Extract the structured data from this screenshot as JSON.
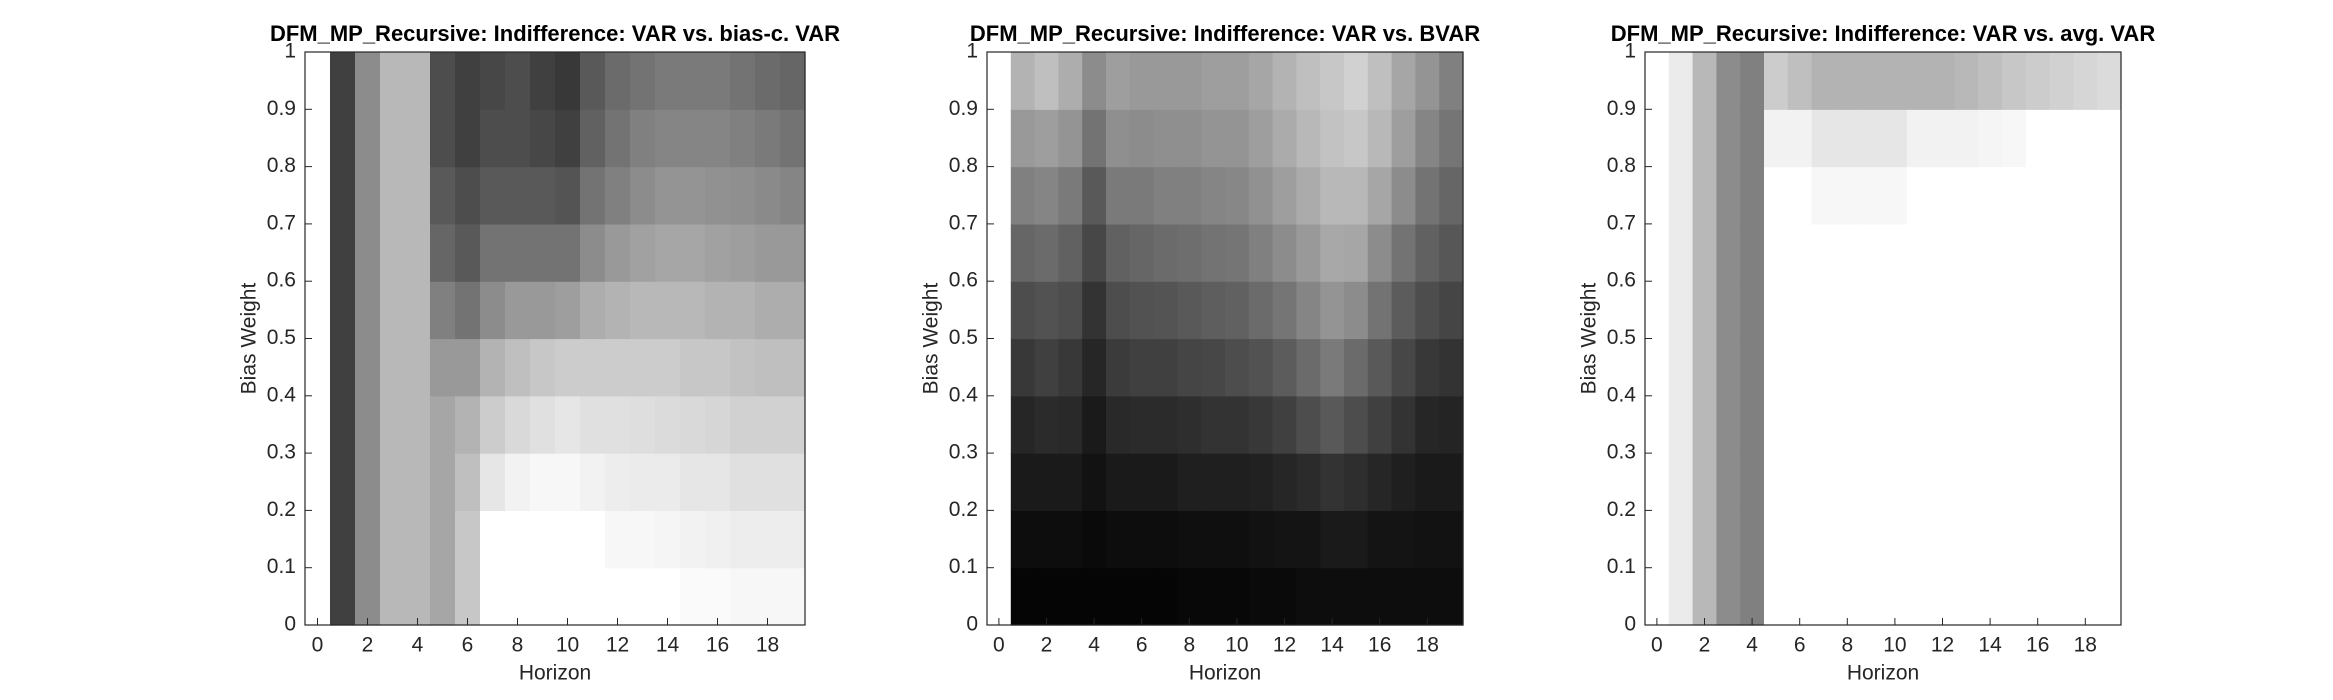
{
  "chart_data": [
    {
      "type": "heatmap",
      "title": "DFM_MP_Recursive: Indifference: VAR vs. bias-c. VAR",
      "xlabel": "Horizon",
      "ylabel": "Bias Weight",
      "colormap": "gray",
      "x": [
        0,
        1,
        2,
        3,
        4,
        5,
        6,
        7,
        8,
        9,
        10,
        11,
        12,
        13,
        14,
        15,
        16,
        17,
        18,
        19
      ],
      "y": [
        0.05,
        0.15,
        0.25,
        0.35,
        0.45,
        0.55,
        0.65,
        0.75,
        0.85,
        0.95
      ],
      "xlim": [
        -0.5,
        19.5
      ],
      "ylim": [
        0,
        1
      ],
      "xticks": [
        0,
        2,
        4,
        6,
        8,
        10,
        12,
        14,
        16,
        18
      ],
      "yticks": [
        0,
        0.1,
        0.2,
        0.3,
        0.4,
        0.5,
        0.6,
        0.7,
        0.8,
        0.9,
        1
      ],
      "z": [
        [
          1,
          1,
          1,
          1,
          1,
          1,
          1,
          1,
          1,
          1
        ],
        [
          0.25,
          0.25,
          0.25,
          0.25,
          0.25,
          0.25,
          0.25,
          0.25,
          0.25,
          0.25
        ],
        [
          0.55,
          0.55,
          0.55,
          0.55,
          0.55,
          0.55,
          0.55,
          0.55,
          0.55,
          0.55
        ],
        [
          0.72,
          0.72,
          0.72,
          0.72,
          0.72,
          0.72,
          0.72,
          0.72,
          0.72,
          0.72
        ],
        [
          0.72,
          0.72,
          0.72,
          0.72,
          0.72,
          0.72,
          0.72,
          0.72,
          0.72,
          0.72
        ],
        [
          0.65,
          0.65,
          0.65,
          0.65,
          0.6,
          0.5,
          0.4,
          0.35,
          0.3,
          0.3
        ],
        [
          0.78,
          0.78,
          0.75,
          0.7,
          0.6,
          0.45,
          0.35,
          0.3,
          0.25,
          0.25
        ],
        [
          1,
          1,
          0.9,
          0.8,
          0.7,
          0.55,
          0.45,
          0.35,
          0.3,
          0.28
        ],
        [
          1,
          1,
          0.95,
          0.85,
          0.75,
          0.6,
          0.45,
          0.35,
          0.3,
          0.3
        ],
        [
          1,
          1,
          0.97,
          0.88,
          0.78,
          0.6,
          0.45,
          0.35,
          0.28,
          0.25
        ],
        [
          1,
          1,
          0.97,
          0.9,
          0.8,
          0.62,
          0.45,
          0.33,
          0.25,
          0.22
        ],
        [
          1,
          1,
          0.95,
          0.88,
          0.8,
          0.68,
          0.55,
          0.45,
          0.38,
          0.35
        ],
        [
          1,
          0.97,
          0.93,
          0.88,
          0.8,
          0.7,
          0.6,
          0.5,
          0.45,
          0.42
        ],
        [
          1,
          0.97,
          0.92,
          0.87,
          0.8,
          0.72,
          0.63,
          0.55,
          0.5,
          0.45
        ],
        [
          1,
          0.96,
          0.92,
          0.86,
          0.8,
          0.72,
          0.65,
          0.58,
          0.52,
          0.48
        ],
        [
          0.98,
          0.95,
          0.9,
          0.85,
          0.78,
          0.72,
          0.65,
          0.58,
          0.52,
          0.48
        ],
        [
          0.98,
          0.94,
          0.9,
          0.84,
          0.78,
          0.7,
          0.63,
          0.57,
          0.52,
          0.48
        ],
        [
          0.97,
          0.93,
          0.88,
          0.82,
          0.76,
          0.7,
          0.62,
          0.56,
          0.5,
          0.45
        ],
        [
          0.97,
          0.93,
          0.88,
          0.82,
          0.75,
          0.68,
          0.6,
          0.54,
          0.48,
          0.42
        ],
        [
          0.97,
          0.93,
          0.88,
          0.82,
          0.75,
          0.68,
          0.6,
          0.52,
          0.45,
          0.4
        ]
      ]
    },
    {
      "type": "heatmap",
      "title": "DFM_MP_Recursive: Indifference: VAR vs. BVAR",
      "xlabel": "Horizon",
      "ylabel": "Bias Weight",
      "colormap": "gray",
      "x": [
        0,
        1,
        2,
        3,
        4,
        5,
        6,
        7,
        8,
        9,
        10,
        11,
        12,
        13,
        14,
        15,
        16,
        17,
        18,
        19
      ],
      "y": [
        0.05,
        0.15,
        0.25,
        0.35,
        0.45,
        0.55,
        0.65,
        0.75,
        0.85,
        0.95
      ],
      "xlim": [
        -0.5,
        19.5
      ],
      "ylim": [
        0,
        1
      ],
      "xticks": [
        0,
        2,
        4,
        6,
        8,
        10,
        12,
        14,
        16,
        18
      ],
      "yticks": [
        0,
        0.1,
        0.2,
        0.3,
        0.4,
        0.5,
        0.6,
        0.7,
        0.8,
        0.9,
        1
      ],
      "z": [
        [
          1,
          1,
          1,
          1,
          1,
          1,
          1,
          1,
          1,
          1
        ],
        [
          0.02,
          0.05,
          0.1,
          0.15,
          0.22,
          0.3,
          0.4,
          0.5,
          0.6,
          0.7
        ],
        [
          0.02,
          0.05,
          0.1,
          0.17,
          0.25,
          0.32,
          0.42,
          0.52,
          0.62,
          0.75
        ],
        [
          0.02,
          0.05,
          0.1,
          0.16,
          0.22,
          0.3,
          0.38,
          0.48,
          0.58,
          0.68
        ],
        [
          0.02,
          0.04,
          0.07,
          0.1,
          0.15,
          0.2,
          0.28,
          0.35,
          0.45,
          0.55
        ],
        [
          0.02,
          0.05,
          0.1,
          0.16,
          0.23,
          0.3,
          0.38,
          0.48,
          0.56,
          0.62
        ],
        [
          0.02,
          0.05,
          0.1,
          0.17,
          0.25,
          0.32,
          0.4,
          0.48,
          0.55,
          0.6
        ],
        [
          0.02,
          0.05,
          0.1,
          0.17,
          0.25,
          0.33,
          0.42,
          0.5,
          0.56,
          0.6
        ],
        [
          0.03,
          0.06,
          0.12,
          0.18,
          0.27,
          0.35,
          0.43,
          0.5,
          0.56,
          0.6
        ],
        [
          0.03,
          0.06,
          0.12,
          0.2,
          0.28,
          0.37,
          0.45,
          0.52,
          0.58,
          0.62
        ],
        [
          0.03,
          0.06,
          0.12,
          0.2,
          0.3,
          0.38,
          0.46,
          0.53,
          0.58,
          0.62
        ],
        [
          0.04,
          0.07,
          0.13,
          0.22,
          0.32,
          0.42,
          0.5,
          0.57,
          0.62,
          0.65
        ],
        [
          0.04,
          0.08,
          0.15,
          0.25,
          0.36,
          0.46,
          0.55,
          0.62,
          0.67,
          0.7
        ],
        [
          0.05,
          0.08,
          0.17,
          0.3,
          0.42,
          0.52,
          0.6,
          0.67,
          0.72,
          0.75
        ],
        [
          0.05,
          0.1,
          0.2,
          0.35,
          0.48,
          0.58,
          0.66,
          0.72,
          0.76,
          0.78
        ],
        [
          0.05,
          0.1,
          0.18,
          0.3,
          0.42,
          0.55,
          0.65,
          0.72,
          0.78,
          0.82
        ],
        [
          0.05,
          0.08,
          0.15,
          0.25,
          0.35,
          0.45,
          0.55,
          0.65,
          0.72,
          0.75
        ],
        [
          0.05,
          0.08,
          0.12,
          0.2,
          0.28,
          0.36,
          0.45,
          0.55,
          0.62,
          0.65
        ],
        [
          0.05,
          0.07,
          0.1,
          0.15,
          0.22,
          0.3,
          0.38,
          0.45,
          0.52,
          0.58
        ],
        [
          0.05,
          0.07,
          0.1,
          0.14,
          0.2,
          0.27,
          0.34,
          0.4,
          0.46,
          0.5
        ]
      ]
    },
    {
      "type": "heatmap",
      "title": "DFM_MP_Recursive: Indifference: VAR vs. avg. VAR",
      "xlabel": "Horizon",
      "ylabel": "Bias Weight",
      "colormap": "gray",
      "x": [
        0,
        1,
        2,
        3,
        4,
        5,
        6,
        7,
        8,
        9,
        10,
        11,
        12,
        13,
        14,
        15,
        16,
        17,
        18,
        19
      ],
      "y": [
        0.05,
        0.15,
        0.25,
        0.35,
        0.45,
        0.55,
        0.65,
        0.75,
        0.85,
        0.95
      ],
      "xlim": [
        -0.5,
        19.5
      ],
      "ylim": [
        0,
        1
      ],
      "xticks": [
        0,
        2,
        4,
        6,
        8,
        10,
        12,
        14,
        16,
        18
      ],
      "yticks": [
        0,
        0.1,
        0.2,
        0.3,
        0.4,
        0.5,
        0.6,
        0.7,
        0.8,
        0.9,
        1
      ],
      "z": [
        [
          1,
          1,
          1,
          1,
          1,
          1,
          1,
          1,
          1,
          1
        ],
        [
          0.92,
          0.92,
          0.92,
          0.92,
          0.92,
          0.92,
          0.92,
          0.92,
          0.92,
          0.92
        ],
        [
          0.72,
          0.72,
          0.72,
          0.72,
          0.72,
          0.72,
          0.72,
          0.72,
          0.72,
          0.72
        ],
        [
          0.55,
          0.55,
          0.55,
          0.55,
          0.55,
          0.55,
          0.55,
          0.55,
          0.55,
          0.55
        ],
        [
          0.5,
          0.5,
          0.5,
          0.5,
          0.5,
          0.5,
          0.5,
          0.5,
          0.5,
          0.5
        ],
        [
          1,
          1,
          1,
          1,
          1,
          1,
          1,
          1,
          0.95,
          0.8
        ],
        [
          1,
          1,
          1,
          1,
          1,
          1,
          1,
          1,
          0.95,
          0.75
        ],
        [
          1,
          1,
          1,
          1,
          1,
          1,
          1,
          0.97,
          0.9,
          0.7
        ],
        [
          1,
          1,
          1,
          1,
          1,
          1,
          1,
          0.97,
          0.9,
          0.7
        ],
        [
          1,
          1,
          1,
          1,
          1,
          1,
          1,
          0.97,
          0.9,
          0.7
        ],
        [
          1,
          1,
          1,
          1,
          1,
          1,
          1,
          0.97,
          0.9,
          0.7
        ],
        [
          1,
          1,
          1,
          1,
          1,
          1,
          1,
          1,
          0.95,
          0.7
        ],
        [
          1,
          1,
          1,
          1,
          1,
          1,
          1,
          1,
          0.95,
          0.7
        ],
        [
          1,
          1,
          1,
          1,
          1,
          1,
          1,
          1,
          0.95,
          0.72
        ],
        [
          1,
          1,
          1,
          1,
          1,
          1,
          1,
          1,
          0.96,
          0.75
        ],
        [
          1,
          1,
          1,
          1,
          1,
          1,
          1,
          1,
          0.97,
          0.78
        ],
        [
          1,
          1,
          1,
          1,
          1,
          1,
          1,
          1,
          1,
          0.8
        ],
        [
          1,
          1,
          1,
          1,
          1,
          1,
          1,
          1,
          1,
          0.82
        ],
        [
          1,
          1,
          1,
          1,
          1,
          1,
          1,
          1,
          1,
          0.84
        ],
        [
          1,
          1,
          1,
          1,
          1,
          1,
          1,
          1,
          1,
          0.86
        ]
      ]
    }
  ]
}
